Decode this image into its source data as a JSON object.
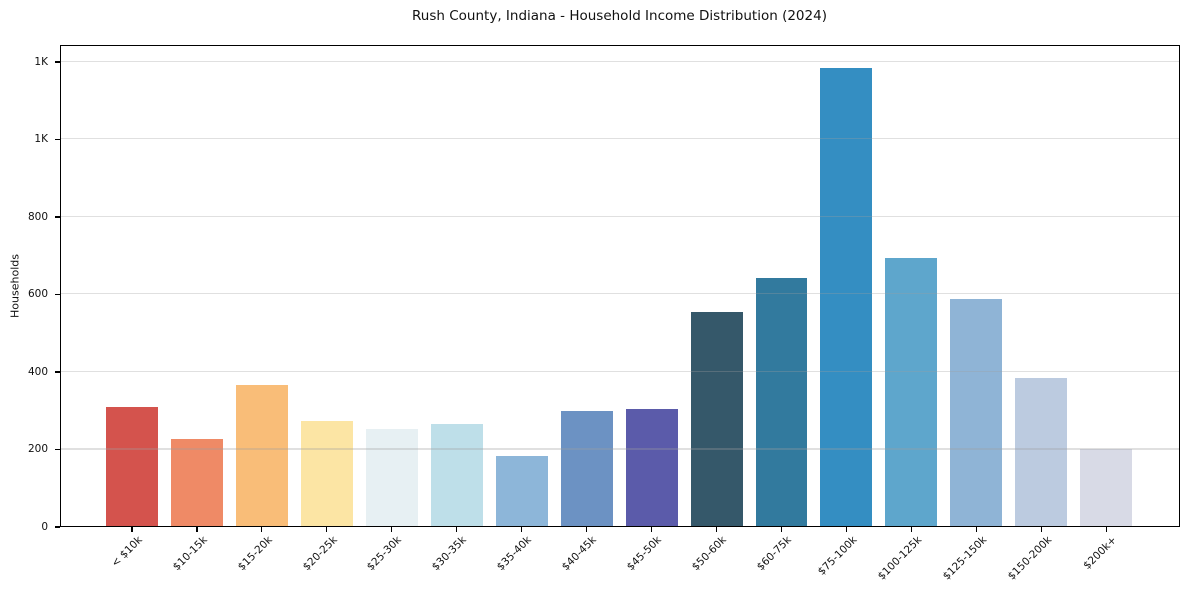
{
  "chart_data": {
    "type": "bar",
    "title": "Rush County, Indiana - Household Income Distribution (2024)",
    "xlabel": "",
    "ylabel": "Households",
    "categories": [
      "< $10k",
      "$10-15k",
      "$15-20k",
      "$20-25k",
      "$25-30k",
      "$30-35k",
      "$35-40k",
      "$40-45k",
      "$45-50k",
      "$50-60k",
      "$60-75k",
      "$75-100k",
      "$100-125k",
      "$125-150k",
      "$150-200k",
      "$200k+"
    ],
    "values": [
      310,
      227,
      367,
      274,
      253,
      267,
      184,
      300,
      305,
      556,
      643,
      1185,
      695,
      589,
      385,
      201
    ],
    "bar_colors": [
      "#d4534d",
      "#ef8a66",
      "#f9bd78",
      "#fce5a4",
      "#e7f0f3",
      "#bedfe9",
      "#8db6d9",
      "#6c92c3",
      "#5b5baa",
      "#35586a",
      "#327a9e",
      "#348ec2",
      "#5ea6cc",
      "#8fb4d6",
      "#bccbe0",
      "#d8dae6"
    ],
    "ylim": [
      0,
      1245
    ],
    "yticks": {
      "values": [
        0,
        200,
        400,
        600,
        800,
        1000,
        1200
      ],
      "labels": [
        "0",
        "200",
        "400",
        "600",
        "800",
        "1K",
        "1K"
      ]
    },
    "grid": "horizontal-on-top",
    "legend": "none",
    "background_color": "#ffffff",
    "axis_color": "#000000",
    "gridline_color": "#e9e9e9"
  }
}
